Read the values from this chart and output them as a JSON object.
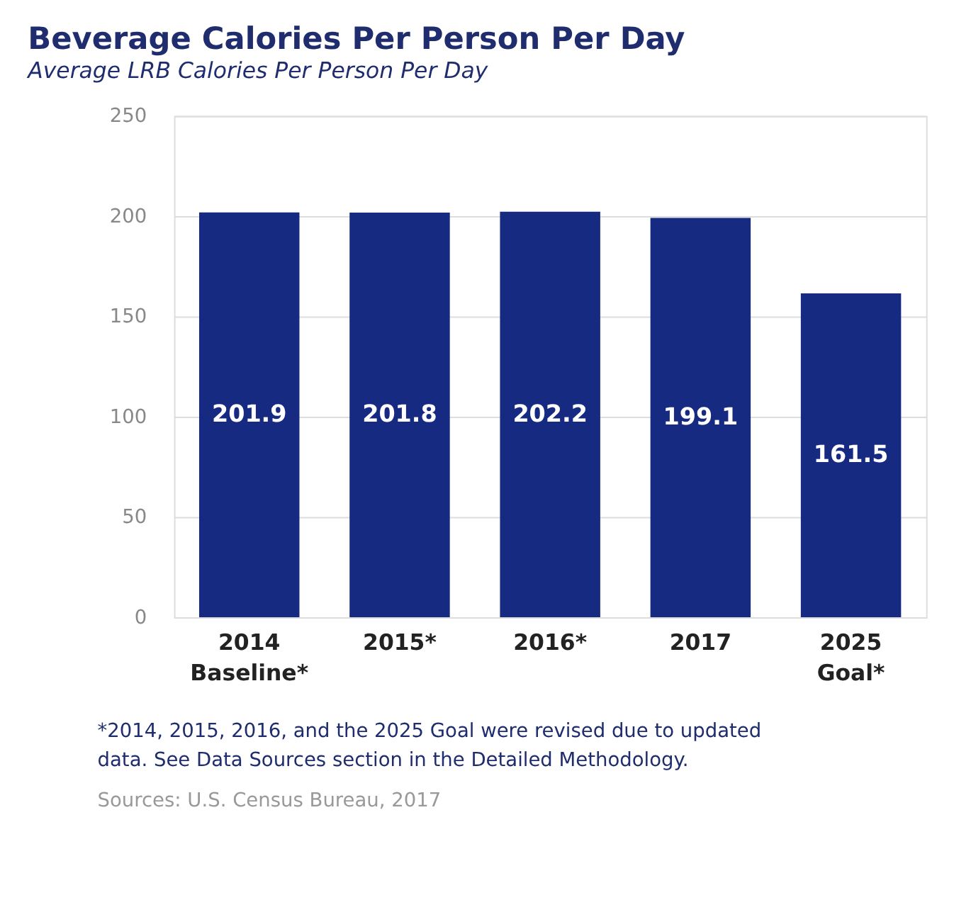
{
  "chart_data": {
    "type": "bar",
    "title": "Beverage Calories Per Person Per Day",
    "subtitle": "Average LRB Calories Per Person Per Day",
    "categories": [
      "2014\nBaseline*",
      "2015*",
      "2016*",
      "2017",
      "2025\nGoal*"
    ],
    "values": [
      201.9,
      201.8,
      202.2,
      199.1,
      161.5
    ],
    "color": "#172a82",
    "ylim": [
      0,
      250
    ],
    "yticks": [
      0,
      50,
      100,
      150,
      200,
      250
    ],
    "grid": "y",
    "data_labels": true,
    "annotations": [
      "*2014, 2015, 2016, and the 2025 Goal were revised due to updated\ndata. See Data Sources section in the Detailed Methodology.",
      "Sources: U.S. Census Bureau, 2017"
    ]
  }
}
